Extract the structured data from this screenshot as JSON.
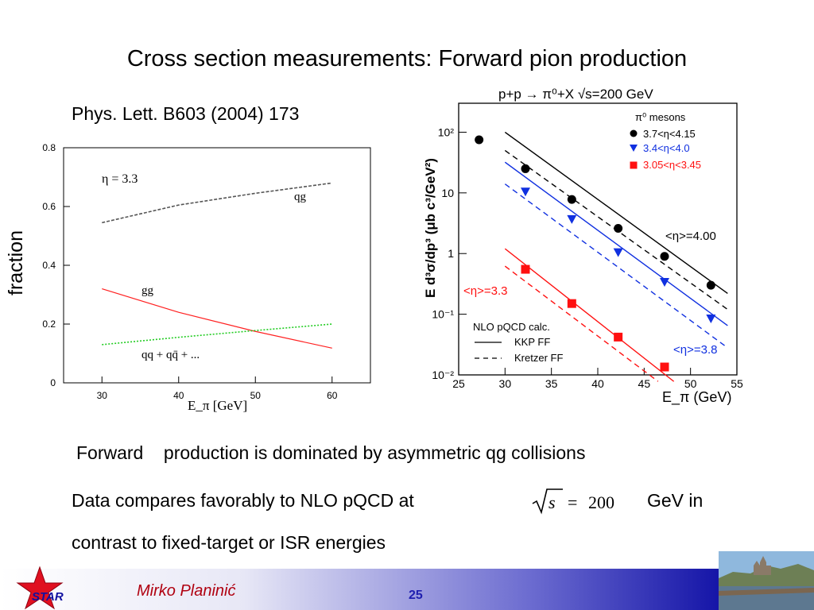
{
  "slide": {
    "title": "Cross section measurements: Forward pion production",
    "reference": "Phys. Lett. B603 (2004) 173",
    "fraction_label": "fraction",
    "bullet1_left": "Forward",
    "bullet1_right": "production is dominated by asymmetric qg collisions",
    "bullet2_left": "Data compares favorably to NLO pQCD at",
    "bullet2_right": "GeV in",
    "bullet3": "contrast to fixed-target or ISR energies",
    "sqrt_symbol": "s",
    "sqrt_equals": "=",
    "sqrt_value": "200",
    "author": "Mirko Planinić",
    "page_number": "25",
    "logo_text": "STAR"
  },
  "chart_data": [
    {
      "type": "line",
      "xlabel": "E_π [GeV]",
      "xlim": [
        25,
        65
      ],
      "ylim": [
        0,
        0.8
      ],
      "x_ticks": [
        30,
        40,
        50,
        60
      ],
      "y_ticks": [
        0,
        0.2,
        0.4,
        0.6,
        0.8
      ],
      "annotation": "η = 3.3",
      "series": [
        {
          "name": "qg",
          "style": "dashed",
          "color": "#555555",
          "x": [
            30,
            40,
            50,
            60
          ],
          "y": [
            0.545,
            0.605,
            0.645,
            0.68
          ]
        },
        {
          "name": "gg",
          "style": "solid",
          "color": "#ff2020",
          "x": [
            30,
            40,
            50,
            60
          ],
          "y": [
            0.32,
            0.24,
            0.175,
            0.118
          ]
        },
        {
          "name": "qq + qq̄ + ...",
          "style": "dotted",
          "color": "#22cc22",
          "x": [
            30,
            40,
            50,
            60
          ],
          "y": [
            0.13,
            0.155,
            0.178,
            0.2
          ]
        }
      ]
    },
    {
      "type": "scatter",
      "title": "p+p → π⁰+X   √s=200 GeV",
      "xlabel": "E_π (GeV)",
      "ylabel": "E d³σ/dp³ (μb c³/GeV²)",
      "xlim": [
        25,
        55
      ],
      "ylim": [
        0.01,
        300
      ],
      "yscale": "log",
      "x_ticks": [
        25,
        30,
        35,
        40,
        45,
        50,
        55
      ],
      "y_ticks": [
        {
          "value": 0.01,
          "label": "10⁻²"
        },
        {
          "value": 0.1,
          "label": "10⁻¹"
        },
        {
          "value": 1,
          "label": "1"
        },
        {
          "value": 10,
          "label": "10"
        },
        {
          "value": 100,
          "label": "10²"
        }
      ],
      "legend_title": "π⁰ mesons",
      "legend_position": "top-right",
      "series": [
        {
          "name": "3.7<η<4.15",
          "marker": "circle",
          "color": "#000000",
          "x": [
            27.2,
            32.2,
            37.2,
            42.2,
            47.2,
            52.2
          ],
          "y": [
            75,
            25,
            7.8,
            2.6,
            0.9,
            0.3
          ]
        },
        {
          "name": "3.4<η<4.0",
          "marker": "triangle-down",
          "color": "#1030e0",
          "x": [
            32.2,
            37.2,
            42.2,
            47.2,
            52.2
          ],
          "y": [
            10.5,
            3.7,
            1.05,
            0.34,
            0.085
          ]
        },
        {
          "name": "3.05<η<3.45",
          "marker": "square",
          "color": "#ff1010",
          "x": [
            32.2,
            37.2,
            42.2,
            47.2
          ],
          "y": [
            0.55,
            0.15,
            0.042,
            0.0135
          ]
        }
      ],
      "curves": [
        {
          "group": "<η>=4.00",
          "ff": "KKP FF",
          "style": "solid",
          "color": "#000000",
          "x": [
            30,
            54
          ],
          "y": [
            100,
            0.22
          ]
        },
        {
          "group": "<η>=4.00",
          "ff": "Kretzer FF",
          "style": "dashed",
          "color": "#000000",
          "x": [
            30,
            54
          ],
          "y": [
            50,
            0.12
          ]
        },
        {
          "group": "<η>=3.8",
          "ff": "KKP FF",
          "style": "solid",
          "color": "#1030e0",
          "x": [
            30,
            54
          ],
          "y": [
            32,
            0.065
          ]
        },
        {
          "group": "<η>=3.8",
          "ff": "Kretzer FF",
          "style": "dashed",
          "color": "#1030e0",
          "x": [
            30,
            54
          ],
          "y": [
            14,
            0.028
          ]
        },
        {
          "group": "<η>=3.3",
          "ff": "KKP FF",
          "style": "solid",
          "color": "#ff1010",
          "x": [
            30,
            48.2
          ],
          "y": [
            1.2,
            0.0078
          ]
        },
        {
          "group": "<η>=3.3",
          "ff": "Kretzer FF",
          "style": "dashed",
          "color": "#ff1010",
          "x": [
            30,
            46.5
          ],
          "y": [
            0.62,
            0.0078
          ]
        }
      ],
      "annotations": [
        {
          "text": "<η>=4.00",
          "color": "#000000"
        },
        {
          "text": "<η>=3.8",
          "color": "#1030e0"
        },
        {
          "text": "<η>=3.3",
          "color": "#ff1010"
        }
      ],
      "calc_legend": {
        "title": "NLO pQCD calc.",
        "entries": [
          "KKP FF",
          "Kretzer FF"
        ]
      }
    }
  ]
}
